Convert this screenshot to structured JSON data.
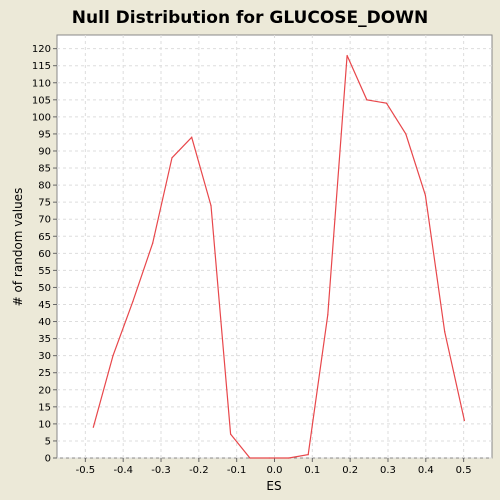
{
  "chart_data": {
    "type": "line",
    "title": "Null Distribution for GLUCOSE_DOWN",
    "xlabel": "ES",
    "ylabel": "# of random values",
    "xlim": [
      -0.575,
      0.575
    ],
    "ylim": [
      0,
      124
    ],
    "x_ticks": [
      -0.5,
      -0.4,
      -0.3,
      -0.2,
      -0.1,
      0.0,
      0.1,
      0.2,
      0.3,
      0.4,
      0.5
    ],
    "x_tick_labels": [
      "-0.5",
      "-0.4",
      "-0.3",
      "-0.2",
      "-0.1",
      "0.0",
      "0.1",
      "0.2",
      "0.3",
      "0.4",
      "0.5"
    ],
    "y_ticks": [
      0,
      5,
      10,
      15,
      20,
      25,
      30,
      35,
      40,
      45,
      50,
      55,
      60,
      65,
      70,
      75,
      80,
      85,
      90,
      95,
      100,
      105,
      110,
      115,
      120
    ],
    "y_tick_labels": [
      "0",
      "5",
      "10",
      "15",
      "20",
      "25",
      "30",
      "35",
      "40",
      "45",
      "50",
      "55",
      "60",
      "65",
      "70",
      "75",
      "80",
      "85",
      "90",
      "95",
      "100",
      "105",
      "110",
      "115",
      "120"
    ],
    "grid": true,
    "legend": "none",
    "series": [
      {
        "color": "#E8474B",
        "x": [
          -0.479,
          -0.427,
          -0.374,
          -0.322,
          -0.271,
          -0.219,
          -0.168,
          -0.116,
          -0.065,
          -0.014,
          0.038,
          0.089,
          0.141,
          0.192,
          0.244,
          0.296,
          0.347,
          0.399,
          0.45,
          0.502
        ],
        "y": [
          9,
          30,
          46,
          63,
          88,
          94,
          74,
          7,
          0,
          0,
          0,
          1,
          42,
          118,
          105,
          104,
          95,
          77,
          37,
          11
        ]
      }
    ]
  }
}
